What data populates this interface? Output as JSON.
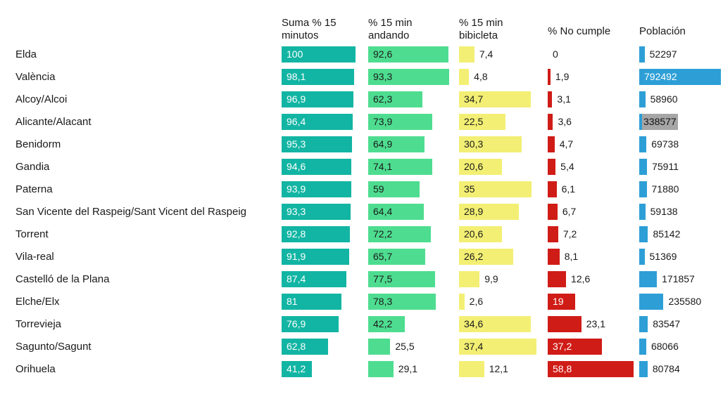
{
  "chart_data": {
    "type": "bar",
    "layout": "multi-column bar table, one row per city, legend off, values labeled on bars",
    "text_color": "#1a1a1a",
    "highlight_bg": "#a6a6a6",
    "columns": [
      {
        "id": "suma",
        "label": "Suma % 15\nminutos",
        "color": "#12b5a3",
        "max": 100,
        "inside_text": "#ffffff",
        "placement": "inside"
      },
      {
        "id": "andando",
        "label": "% 15 min\nandando",
        "color": "#4edd90",
        "max": 100,
        "inside_text": "#1a1a1a",
        "placement": "auto"
      },
      {
        "id": "bici",
        "label": "% 15 min\nbibicleta",
        "color": "#f3ef74",
        "max": 40,
        "inside_text": "#1a1a1a",
        "placement": "auto"
      },
      {
        "id": "nocumple",
        "label": "% No cumple",
        "color": "#d01c17",
        "max": 60,
        "inside_text": "#ffffff",
        "placement": "auto"
      },
      {
        "id": "poblacion",
        "label": "Población",
        "color": "#2d9fd6",
        "max": 800000,
        "inside_text": "#ffffff",
        "placement": "auto"
      }
    ],
    "rows": [
      {
        "city": "Elda",
        "values": [
          100,
          92.6,
          7.4,
          0,
          52297
        ],
        "labels": [
          "100",
          "92,6",
          "7,4",
          "0",
          "52297"
        ]
      },
      {
        "city": "València",
        "values": [
          98.1,
          93.3,
          4.8,
          1.9,
          792492
        ],
        "labels": [
          "98,1",
          "93,3",
          "4,8",
          "1,9",
          "792492"
        ]
      },
      {
        "city": "Alcoy/Alcoi",
        "values": [
          96.9,
          62.3,
          34.7,
          3.1,
          58960
        ],
        "labels": [
          "96,9",
          "62,3",
          "34,7",
          "3,1",
          "58960"
        ]
      },
      {
        "city": "Alicante/Alacant",
        "values": [
          96.4,
          73.9,
          22.5,
          3.6,
          338577
        ],
        "labels": [
          "96,4",
          "73,9",
          "22,5",
          "3,6",
          "338577"
        ],
        "highlight": "poblacion"
      },
      {
        "city": "Benidorm",
        "values": [
          95.3,
          64.9,
          30.3,
          4.7,
          69738
        ],
        "labels": [
          "95,3",
          "64,9",
          "30,3",
          "4,7",
          "69738"
        ]
      },
      {
        "city": "Gandia",
        "values": [
          94.6,
          74.1,
          20.6,
          5.4,
          75911
        ],
        "labels": [
          "94,6",
          "74,1",
          "20,6",
          "5,4",
          "75911"
        ]
      },
      {
        "city": "Paterna",
        "values": [
          93.9,
          59,
          35,
          6.1,
          71880
        ],
        "labels": [
          "93,9",
          "59",
          "35",
          "6,1",
          "71880"
        ]
      },
      {
        "city": "San Vicente del Raspeig/Sant Vicent del Raspeig",
        "values": [
          93.3,
          64.4,
          28.9,
          6.7,
          59138
        ],
        "labels": [
          "93,3",
          "64,4",
          "28,9",
          "6,7",
          "59138"
        ]
      },
      {
        "city": "Torrent",
        "values": [
          92.8,
          72.2,
          20.6,
          7.2,
          85142
        ],
        "labels": [
          "92,8",
          "72,2",
          "20,6",
          "7,2",
          "85142"
        ]
      },
      {
        "city": "Vila-real",
        "values": [
          91.9,
          65.7,
          26.2,
          8.1,
          51369
        ],
        "labels": [
          "91,9",
          "65,7",
          "26,2",
          "8,1",
          "51369"
        ]
      },
      {
        "city": "Castelló de la Plana",
        "values": [
          87.4,
          77.5,
          9.9,
          12.6,
          171857
        ],
        "labels": [
          "87,4",
          "77,5",
          "9,9",
          "12,6",
          "171857"
        ]
      },
      {
        "city": "Elche/Elx",
        "values": [
          81,
          78.3,
          2.6,
          19,
          235580
        ],
        "labels": [
          "81",
          "78,3",
          "2,6",
          "19",
          "235580"
        ]
      },
      {
        "city": "Torrevieja",
        "values": [
          76.9,
          42.2,
          34.6,
          23.1,
          83547
        ],
        "labels": [
          "76,9",
          "42,2",
          "34,6",
          "23,1",
          "83547"
        ]
      },
      {
        "city": "Sagunto/Sagunt",
        "values": [
          62.8,
          25.5,
          37.4,
          37.2,
          68066
        ],
        "labels": [
          "62,8",
          "25,5",
          "37,4",
          "37,2",
          "68066"
        ]
      },
      {
        "city": "Orihuela",
        "values": [
          41.2,
          29.1,
          12.1,
          58.8,
          80784
        ],
        "labels": [
          "41,2",
          "29,1",
          "12,1",
          "58,8",
          "80784"
        ]
      }
    ]
  }
}
